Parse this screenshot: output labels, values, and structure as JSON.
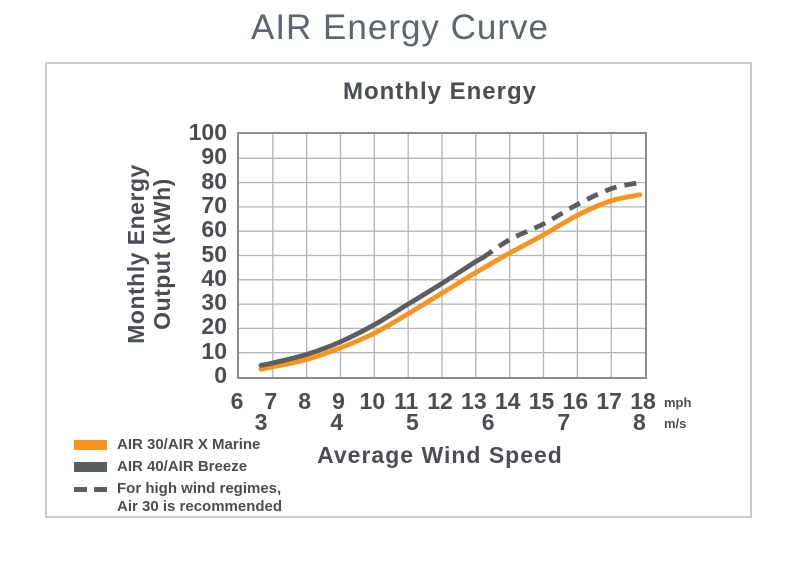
{
  "page": {
    "title": "AIR Energy Curve"
  },
  "colors": {
    "accent_orange": "#f7941e",
    "curve_gray": "#5a5d61",
    "text_dark": "#4a4e54",
    "title_gray_blue": "#5c6670",
    "gridline": "#b3b5b7",
    "plot_border": "#8b8c8f",
    "frame_border": "#c8c9cb"
  },
  "chart_data": {
    "type": "line",
    "title": "Monthly Energy",
    "xlabel": "Average Wind Speed",
    "ylabel_lines": [
      "Monthly Energy",
      "Output (kWh)"
    ],
    "grid": true,
    "legend_position": "bottom-left",
    "x_axis": {
      "primary_unit": "mph",
      "secondary_unit": "m/s",
      "range_mph": [
        6,
        18
      ],
      "ticks_mph": [
        6,
        7,
        8,
        9,
        10,
        11,
        12,
        13,
        14,
        15,
        16,
        17,
        18
      ],
      "ticks_ms": [
        3,
        4,
        5,
        6,
        7,
        8
      ],
      "ms_to_mph_factor": 2.23694
    },
    "y_axis": {
      "range": [
        0,
        100
      ],
      "ticks": [
        100,
        90,
        80,
        70,
        60,
        50,
        40,
        30,
        20,
        10,
        0
      ]
    },
    "series": [
      {
        "name": "AIR 30/AIR X Marine",
        "color": "#f7941e",
        "line_style": "solid",
        "points_mph_kwh": [
          [
            6.65,
            3.2
          ],
          [
            7,
            4.2
          ],
          [
            8,
            7.2
          ],
          [
            9,
            12
          ],
          [
            10,
            18
          ],
          [
            11,
            26
          ],
          [
            12,
            34.5
          ],
          [
            13,
            43
          ],
          [
            14,
            51
          ],
          [
            15,
            58.5
          ],
          [
            16,
            66.5
          ],
          [
            17,
            72.5
          ],
          [
            17.85,
            75
          ]
        ]
      },
      {
        "name": "AIR 40/AIR Breeze",
        "color": "#5a5d61",
        "line_style": "solid",
        "points_mph_kwh": [
          [
            6.65,
            4.8
          ],
          [
            7,
            5.8
          ],
          [
            8,
            9.3
          ],
          [
            9,
            14.5
          ],
          [
            10,
            21.5
          ],
          [
            11,
            30
          ],
          [
            12,
            38.5
          ],
          [
            13,
            47.5
          ],
          [
            13.2,
            49
          ]
        ]
      },
      {
        "name": "AIR 40/AIR Breeze (high wind regime, recommended Air 30)",
        "color": "#5a5d61",
        "line_style": "dashed",
        "points_mph_kwh": [
          [
            13.2,
            49
          ],
          [
            14,
            56.5
          ],
          [
            15,
            63
          ],
          [
            16,
            71
          ],
          [
            17,
            77.5
          ],
          [
            17.85,
            80
          ]
        ]
      }
    ],
    "legend": [
      {
        "swatch": "solid",
        "color": "#f7941e",
        "lines": [
          "AIR 30/AIR X Marine"
        ]
      },
      {
        "swatch": "solid",
        "color": "#5a5d61",
        "lines": [
          "AIR 40/AIR Breeze"
        ]
      },
      {
        "swatch": "dashed",
        "color": "#5a5d61",
        "lines": [
          "For high wind regimes,",
          "Air 30 is recommended"
        ]
      }
    ]
  }
}
